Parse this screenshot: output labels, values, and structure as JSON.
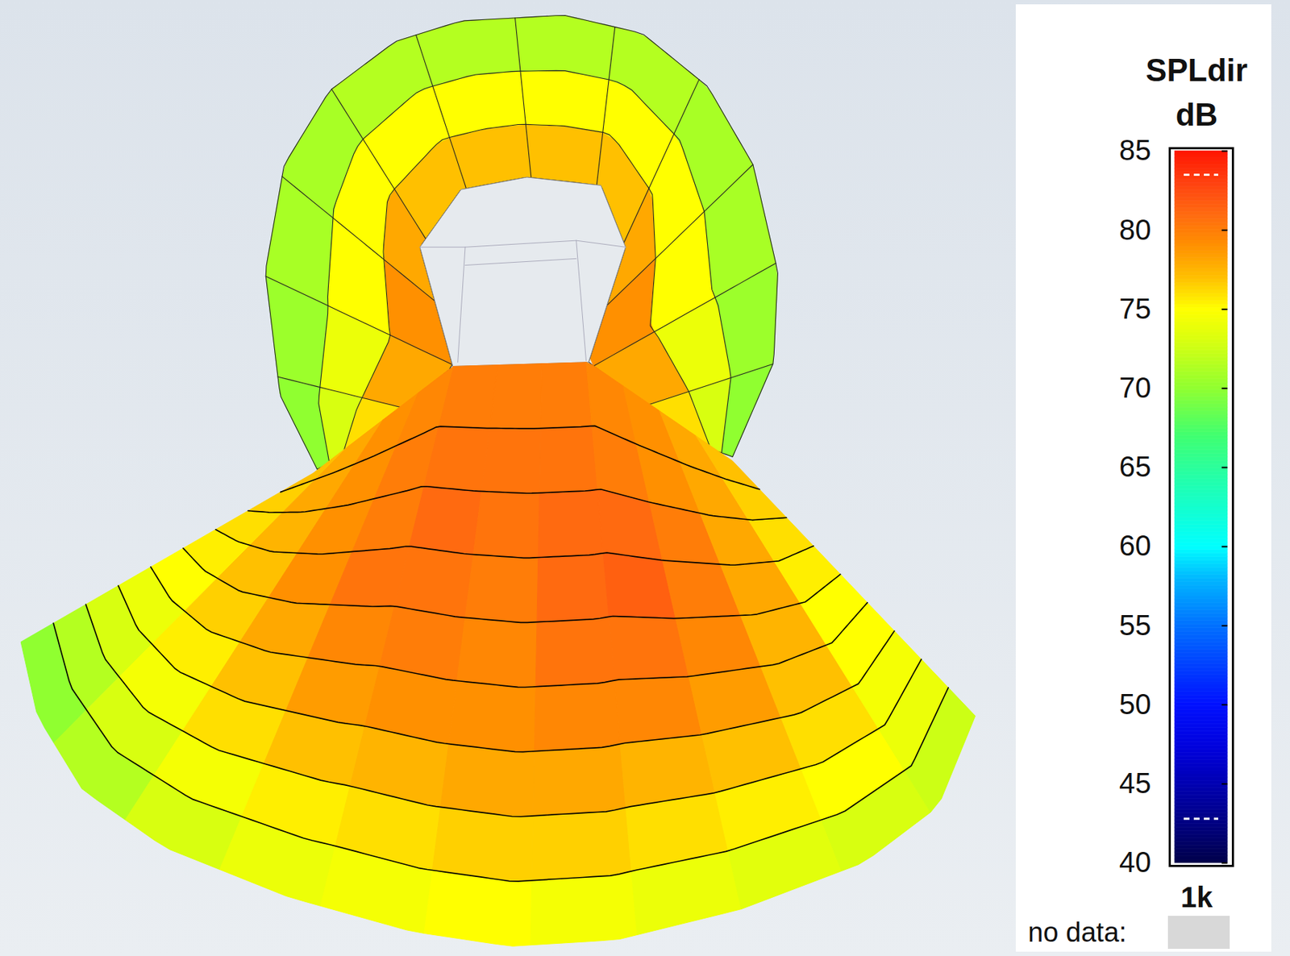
{
  "chart_data": {
    "type": "heatmap",
    "tick_labels": false,
    "fan": {
      "values": [
        [
          77,
          78,
          79,
          79.5,
          80,
          80,
          80,
          79.5,
          79,
          78,
          77
        ],
        [
          76.5,
          78,
          79,
          80,
          80.5,
          80.5,
          80.5,
          80,
          79,
          78,
          76.5
        ],
        [
          76,
          77.5,
          79,
          80,
          81,
          80.5,
          81,
          81,
          80,
          78,
          76
        ],
        [
          75.5,
          77,
          79,
          80.5,
          80.5,
          80,
          81,
          81.5,
          80,
          78,
          75.5
        ],
        [
          75,
          76.5,
          78,
          79.5,
          80,
          79.5,
          80.5,
          80.5,
          79.5,
          77.5,
          75
        ],
        [
          74,
          75.5,
          77,
          78.5,
          79,
          79,
          79.5,
          79.5,
          78.5,
          77,
          75
        ],
        [
          73,
          74.5,
          76,
          77,
          77.5,
          78,
          78,
          77.5,
          77,
          76,
          74.5
        ],
        [
          71.5,
          73,
          74.5,
          75.5,
          76,
          76.5,
          76.5,
          76,
          75.5,
          75,
          74
        ],
        [
          70,
          71.5,
          73,
          74,
          74.5,
          75,
          74.5,
          74,
          73.5,
          73,
          72.5
        ]
      ]
    },
    "ring": {
      "values": [
        [
          76,
          78,
          79,
          78,
          77,
          77,
          77,
          77,
          78,
          79,
          78,
          76
        ],
        [
          73,
          74,
          75,
          75,
          75,
          75,
          75,
          75,
          75,
          75,
          74,
          73
        ],
        [
          70,
          70.5,
          71,
          71,
          71.5,
          71.5,
          71.5,
          71.5,
          71,
          71,
          70.5,
          70
        ]
      ]
    },
    "colorbar": {
      "title": "SPLdir",
      "unit": "dB",
      "range": [
        40,
        85
      ],
      "ticks": [
        40,
        45,
        50,
        55,
        60,
        65,
        70,
        75,
        80,
        85
      ],
      "markers": [
        83.5,
        42.8
      ]
    },
    "frequency": "1k",
    "no_data_label": "no data:"
  }
}
